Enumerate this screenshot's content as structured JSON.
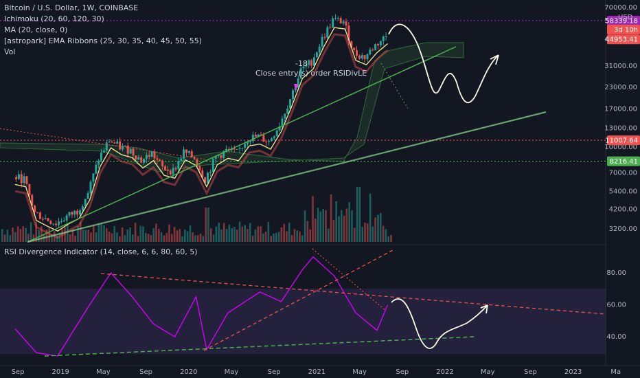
{
  "header": {
    "title": "Bitcoin / U.S. Dollar, 1W, COINBASE",
    "indicators": [
      "Ichimoku (20, 60, 120, 30)",
      "MA (20, close, 0)",
      "[astropark] EMA Ribbons (25, 30, 35, 40, 45, 50, 55)",
      "Vol"
    ],
    "rsi_legend": "RSI Divergence Indicator (14, close, 6, 6, 80, 60, 5)"
  },
  "annotations": {
    "order_count": "-18",
    "order_text": "Close entry(s) order RSIDivLE"
  },
  "currency_label": "USD",
  "price_tags": [
    {
      "text": "58339.18",
      "color": "#9c27b0",
      "y": 58339
    },
    {
      "text": "3d 10h",
      "color": "#ef5350",
      "y": 51500
    },
    {
      "text": "44953.41",
      "color": "#ef5350",
      "y": 44953
    },
    {
      "text": "11007.64",
      "color": "#ef5350",
      "y": 11007
    },
    {
      "text": "8216.41",
      "color": "#4caf50",
      "y": 8216
    }
  ],
  "chart_data": {
    "type": "candlestick",
    "x_labels": [
      "Sep",
      "2019",
      "May",
      "Sep",
      "2020",
      "May",
      "Sep",
      "2021",
      "May",
      "Sep",
      "2022",
      "May",
      "Sep",
      "2023",
      "Ma"
    ],
    "price_axis": {
      "scale": "log",
      "ticks": [
        "70000.00",
        "58339.18",
        "44953.41",
        "31000.00",
        "23000.00",
        "17000.00",
        "13000.00",
        "10000.00",
        "7000.00",
        "5400.00",
        "4200.00",
        "3200.00"
      ]
    },
    "rsi_axis": {
      "ticks": [
        "80.00",
        "60.00",
        "40.00"
      ],
      "ylim": [
        25,
        100
      ],
      "band": [
        30,
        70
      ]
    },
    "horizontal_levels": [
      {
        "price": 58339.18,
        "color": "#9c27b0",
        "style": "dotted"
      },
      {
        "price": 11007.64,
        "color": "#ef5350",
        "style": "dotted"
      },
      {
        "price": 8216.41,
        "color": "#4caf50",
        "style": "dotted"
      }
    ],
    "price_series": [
      {
        "t": "2018-09",
        "close": 6600
      },
      {
        "t": "2018-10",
        "close": 6400
      },
      {
        "t": "2018-11",
        "close": 4000
      },
      {
        "t": "2018-12",
        "close": 3700
      },
      {
        "t": "2019-01",
        "close": 3450
      },
      {
        "t": "2019-02",
        "close": 3800
      },
      {
        "t": "2019-03",
        "close": 4100
      },
      {
        "t": "2019-04",
        "close": 5300
      },
      {
        "t": "2019-05",
        "close": 8500
      },
      {
        "t": "2019-06",
        "close": 11000
      },
      {
        "t": "2019-07",
        "close": 10000
      },
      {
        "t": "2019-08",
        "close": 9600
      },
      {
        "t": "2019-09",
        "close": 8300
      },
      {
        "t": "2019-10",
        "close": 9200
      },
      {
        "t": "2019-11",
        "close": 7500
      },
      {
        "t": "2019-12",
        "close": 7200
      },
      {
        "t": "2020-01",
        "close": 9300
      },
      {
        "t": "2020-02",
        "close": 8600
      },
      {
        "t": "2020-03",
        "close": 6400
      },
      {
        "t": "2020-04",
        "close": 8700
      },
      {
        "t": "2020-05",
        "close": 9500
      },
      {
        "t": "2020-06",
        "close": 9200
      },
      {
        "t": "2020-07",
        "close": 11300
      },
      {
        "t": "2020-08",
        "close": 11600
      },
      {
        "t": "2020-09",
        "close": 10800
      },
      {
        "t": "2020-10",
        "close": 13800
      },
      {
        "t": "2020-11",
        "close": 19700
      },
      {
        "t": "2020-12",
        "close": 29000
      },
      {
        "t": "2021-01",
        "close": 33000
      },
      {
        "t": "2021-02",
        "close": 45000
      },
      {
        "t": "2021-03",
        "close": 58800
      },
      {
        "t": "2021-04",
        "close": 57700
      },
      {
        "t": "2021-05",
        "close": 37300
      },
      {
        "t": "2021-06",
        "close": 35000
      },
      {
        "t": "2021-07",
        "close": 41500
      },
      {
        "t": "2021-08",
        "close": 47000
      }
    ],
    "rsi_series": [
      {
        "t": "2018-09",
        "v": 45
      },
      {
        "t": "2018-11",
        "v": 30
      },
      {
        "t": "2019-01",
        "v": 28
      },
      {
        "t": "2019-04",
        "v": 60
      },
      {
        "t": "2019-06",
        "v": 80
      },
      {
        "t": "2019-08",
        "v": 65
      },
      {
        "t": "2019-10",
        "v": 48
      },
      {
        "t": "2019-12",
        "v": 40
      },
      {
        "t": "2020-02",
        "v": 65
      },
      {
        "t": "2020-03",
        "v": 32
      },
      {
        "t": "2020-05",
        "v": 55
      },
      {
        "t": "2020-08",
        "v": 68
      },
      {
        "t": "2020-10",
        "v": 62
      },
      {
        "t": "2020-12",
        "v": 82
      },
      {
        "t": "2021-01",
        "v": 90
      },
      {
        "t": "2021-03",
        "v": 78
      },
      {
        "t": "2021-05",
        "v": 55
      },
      {
        "t": "2021-07",
        "v": 44
      },
      {
        "t": "2021-08",
        "v": 60
      }
    ]
  }
}
